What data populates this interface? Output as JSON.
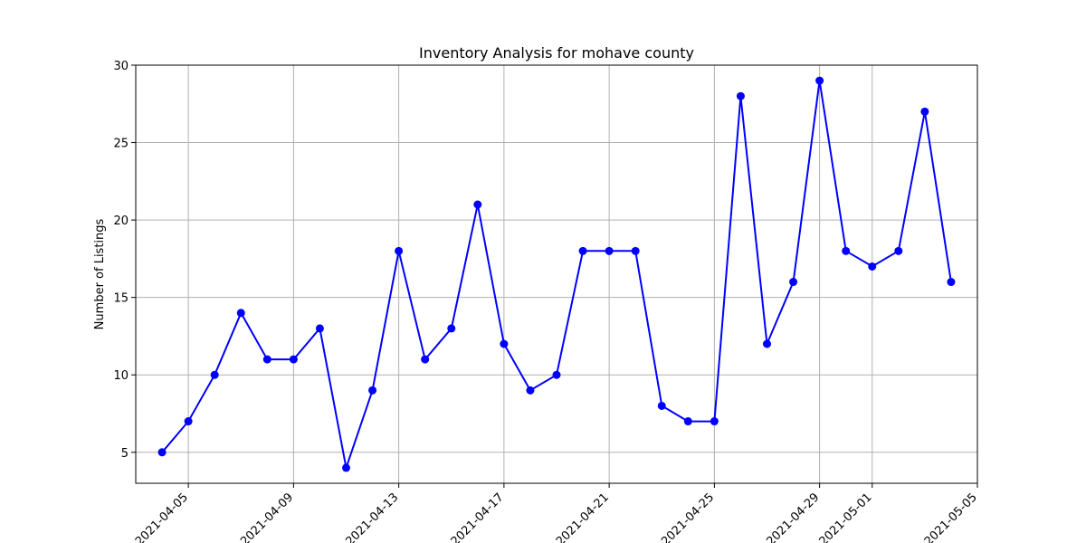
{
  "chart_data": {
    "type": "line",
    "title": "Inventory Analysis for mohave county",
    "xlabel": "",
    "ylabel": "Number of Listings",
    "grid": true,
    "x_ticks": [
      "2021-04-05",
      "2021-04-09",
      "2021-04-13",
      "2021-04-17",
      "2021-04-21",
      "2021-04-25",
      "2021-04-29",
      "2021-05-01",
      "2021-05-05"
    ],
    "y_ticks": [
      5,
      10,
      15,
      20,
      25,
      30
    ],
    "xlim": [
      "2021-04-03",
      "2021-05-05"
    ],
    "ylim": [
      3,
      30
    ],
    "series": [
      {
        "color": "#0000ff",
        "marker": "circle",
        "x": [
          "2021-04-04",
          "2021-04-05",
          "2021-04-06",
          "2021-04-07",
          "2021-04-08",
          "2021-04-09",
          "2021-04-10",
          "2021-04-11",
          "2021-04-12",
          "2021-04-13",
          "2021-04-14",
          "2021-04-15",
          "2021-04-16",
          "2021-04-17",
          "2021-04-18",
          "2021-04-19",
          "2021-04-20",
          "2021-04-21",
          "2021-04-22",
          "2021-04-23",
          "2021-04-24",
          "2021-04-25",
          "2021-04-26",
          "2021-04-27",
          "2021-04-28",
          "2021-04-29",
          "2021-04-30",
          "2021-05-01",
          "2021-05-02",
          "2021-05-03",
          "2021-05-04"
        ],
        "values": [
          5,
          7,
          10,
          14,
          11,
          11,
          13,
          4,
          9,
          18,
          11,
          13,
          21,
          12,
          9,
          10,
          18,
          18,
          18,
          8,
          7,
          7,
          28,
          12,
          16,
          29,
          18,
          17,
          18,
          27,
          16
        ]
      }
    ]
  }
}
